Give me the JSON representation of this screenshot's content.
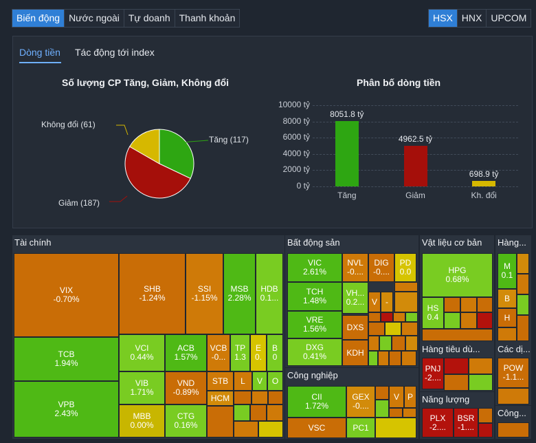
{
  "top_tabs_left": [
    {
      "label": "Biến động",
      "active": true
    },
    {
      "label": "Nước ngoài",
      "active": false
    },
    {
      "label": "Tự doanh",
      "active": false
    },
    {
      "label": "Thanh khoản",
      "active": false
    }
  ],
  "top_tabs_right": [
    {
      "label": "HSX",
      "active": true
    },
    {
      "label": "HNX",
      "active": false
    },
    {
      "label": "UPCOM",
      "active": false
    }
  ],
  "sub_tabs": [
    {
      "label": "Dòng tiền",
      "active": true
    },
    {
      "label": "Tác động tới index",
      "active": false
    }
  ],
  "pie": {
    "title": "Số lượng CP Tăng, Giảm, Không đổi",
    "labels": {
      "up": "Tăng (117)",
      "down": "Giảm (187)",
      "flat": "Không đổi (61)"
    },
    "chart_data": {
      "type": "pie",
      "categories": [
        "Tăng",
        "Giảm",
        "Không đổi"
      ],
      "values": [
        117,
        187,
        61
      ],
      "colors": [
        "#2ea612",
        "#a50f0a",
        "#d6b800"
      ]
    }
  },
  "bar": {
    "title": "Phân bố dòng tiền",
    "chart_data": {
      "type": "bar",
      "categories": [
        "Tăng",
        "Giảm",
        "Kh. đổi"
      ],
      "values": [
        8051.8,
        4962.5,
        698.9
      ],
      "value_labels": [
        "8051.8 tỷ",
        "4962.5 tỷ",
        "698.9 tỷ"
      ],
      "ylim": [
        0,
        10000
      ],
      "yticks": [
        "0 tỷ",
        "2000 tỷ",
        "4000 tỷ",
        "6000 tỷ",
        "8000 tỷ",
        "10000 tỷ"
      ],
      "colors": [
        "#2ea612",
        "#a50f0a",
        "#d6b800"
      ]
    }
  },
  "sectors": {
    "tai_chinh": "Tài chính",
    "bat_dong_san": "Bất động sản",
    "cong_nghiep": "Công nghiệp",
    "vat_lieu": "Vật liệu cơ bản",
    "hang": "Hàng...",
    "hang_tieu_dung": "Hàng tiêu dù...",
    "nang_luong": "Năng lượng",
    "cac_dich_vu": "Các dị...",
    "cong": "Công..."
  },
  "cells": {
    "VIX": [
      "VIX",
      "-0.70%"
    ],
    "TCB": [
      "TCB",
      "1.94%"
    ],
    "VPB": [
      "VPB",
      "2.43%"
    ],
    "SHB": [
      "SHB",
      "-1.24%"
    ],
    "SSI": [
      "SSI",
      "-1.15%"
    ],
    "MSB": [
      "MSB",
      "2.28%"
    ],
    "HDB": [
      "HDB",
      "0.1..."
    ],
    "VCI": [
      "VCI",
      "0.44%"
    ],
    "ACB": [
      "ACB",
      "1.57%"
    ],
    "VCB": [
      "VCB",
      "-0..."
    ],
    "TP": [
      "TP",
      "1.3"
    ],
    "E": [
      "E",
      "0."
    ],
    "B": [
      "B",
      "0"
    ],
    "VIB": [
      "VIB",
      "1.71%"
    ],
    "VND": [
      "VND",
      "-0.89%"
    ],
    "STB": [
      "STB",
      ""
    ],
    "L": [
      "L",
      ""
    ],
    "V1": [
      "V",
      ""
    ],
    "O": [
      "O",
      ""
    ],
    "HCM": [
      "HCM",
      ""
    ],
    "MBB": [
      "MBB",
      "0.00%"
    ],
    "CTG": [
      "CTG",
      "0.16%"
    ],
    "VIC": [
      "VIC",
      "2.61%"
    ],
    "NVL": [
      "NVL",
      "-0...."
    ],
    "DIG": [
      "DIG",
      "-0...."
    ],
    "PD": [
      "PD",
      "0.0"
    ],
    "TCH": [
      "TCH",
      "1.48%"
    ],
    "VH": [
      "VH...",
      "0.2..."
    ],
    "V2": [
      "V",
      ""
    ],
    "V3": [
      "-",
      ""
    ],
    "VRE": [
      "VRE",
      "1.56%"
    ],
    "DXS": [
      "DXS",
      ""
    ],
    "DXG": [
      "DXG",
      "0.41%"
    ],
    "KDH": [
      "KDH",
      ""
    ],
    "CII": [
      "CII",
      "1.72%"
    ],
    "GEX": [
      "GEX",
      "-0...."
    ],
    "V4": [
      "V",
      ""
    ],
    "P": [
      "P",
      ""
    ],
    "VSC": [
      "VSC",
      ""
    ],
    "PC1": [
      "PC1",
      ""
    ],
    "HPG": [
      "HPG",
      "0.68%"
    ],
    "HS": [
      "HS",
      "0.4"
    ],
    "M": [
      "M",
      "0.1"
    ],
    "B2": [
      "B",
      ""
    ],
    "H": [
      "H",
      ""
    ],
    "PNJ": [
      "PNJ",
      "-2...."
    ],
    "POW": [
      "POW",
      "-1.1..."
    ],
    "PLX": [
      "PLX",
      "-2...."
    ],
    "BSR": [
      "BSR",
      "-1...."
    ]
  }
}
